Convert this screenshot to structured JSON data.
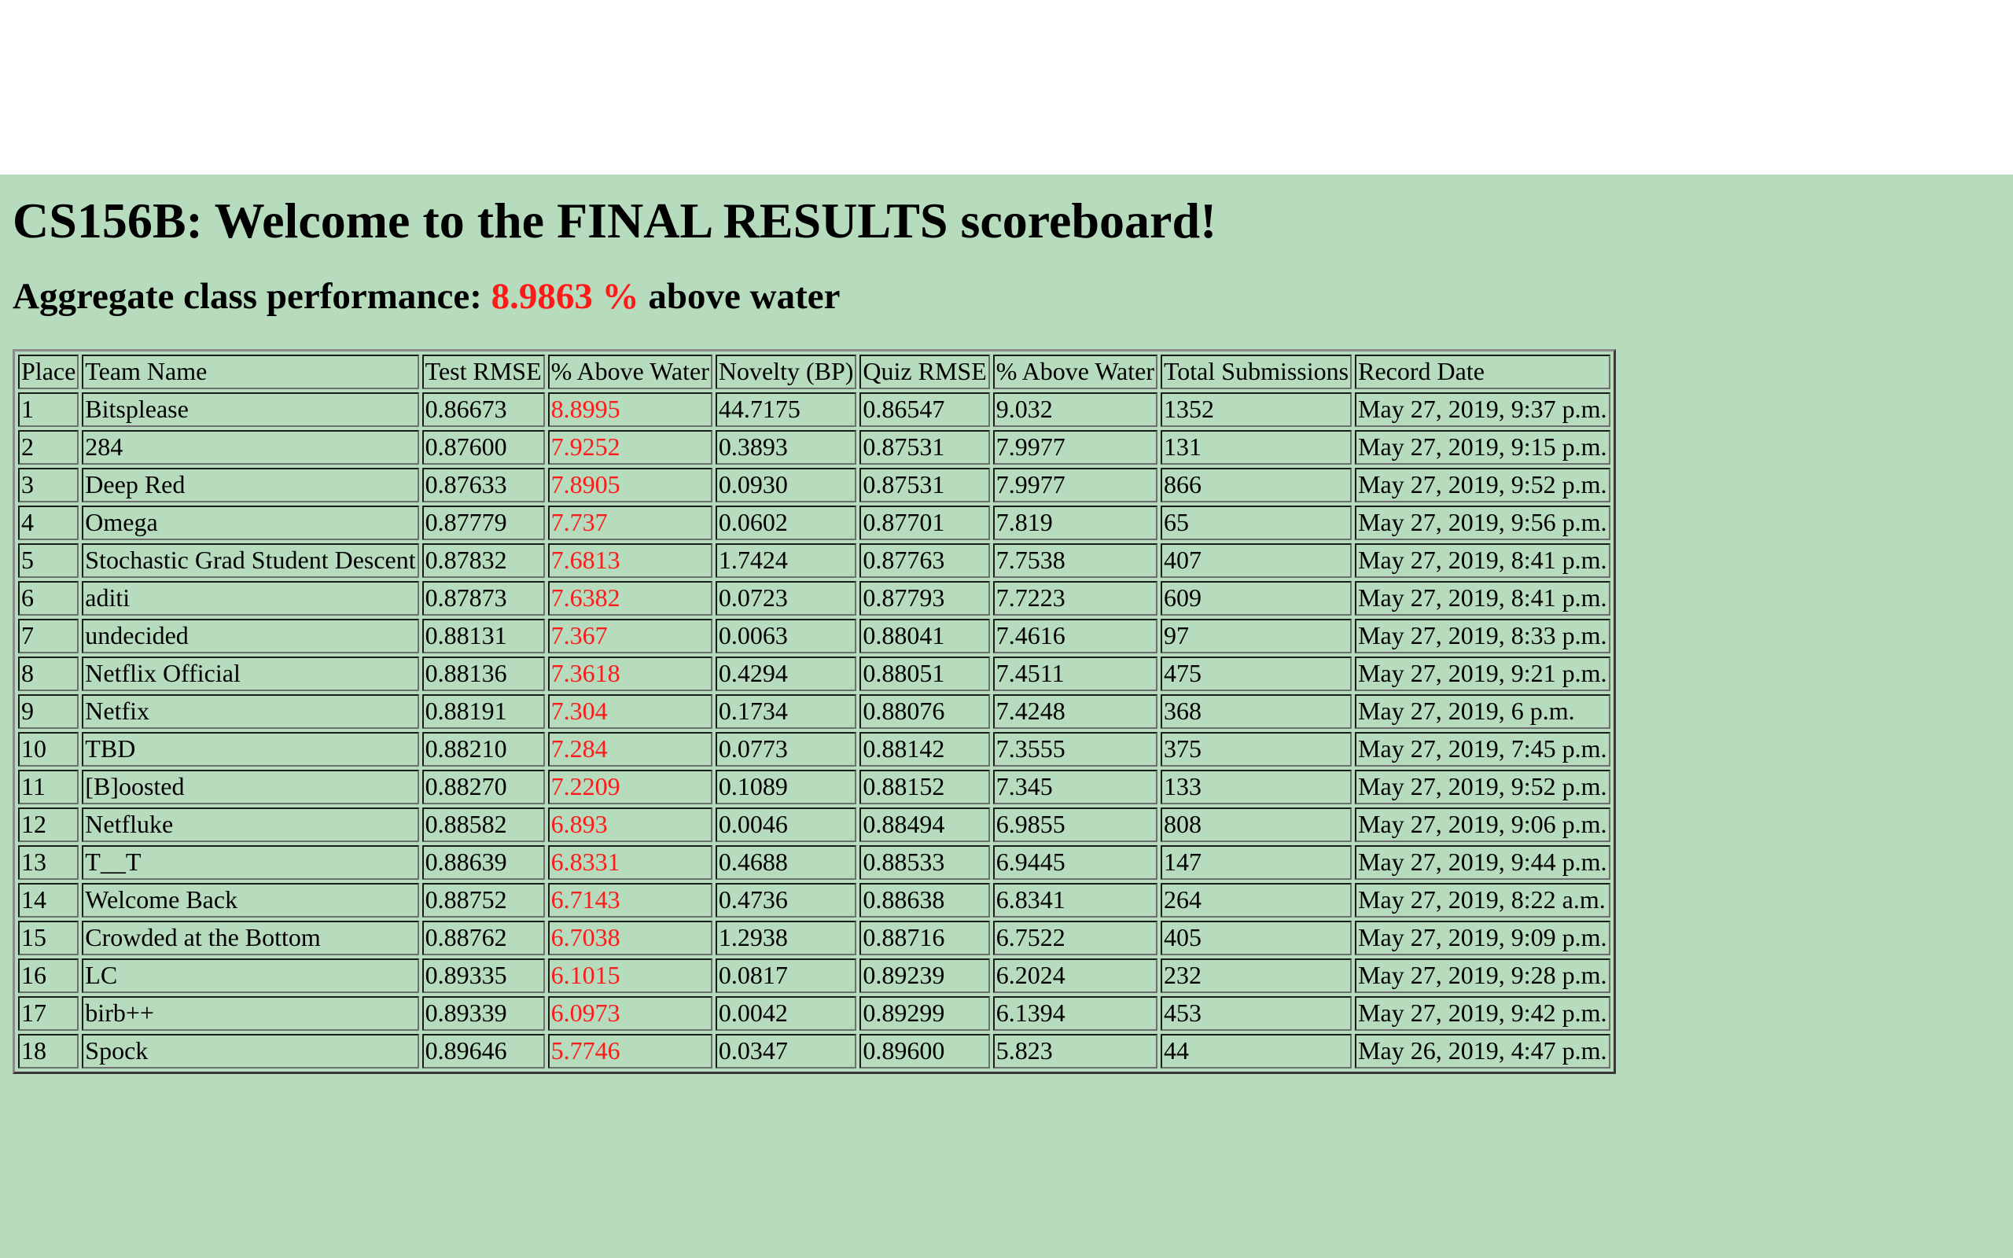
{
  "header": {
    "title": "CS156B: Welcome to the FINAL RESULTS scoreboard!",
    "aggregate_prefix": "Aggregate class performance: ",
    "aggregate_value": "8.9863 %",
    "aggregate_suffix": " above water"
  },
  "colors": {
    "background": "#b6dcbd",
    "highlight": "#ff1a1a"
  },
  "table": {
    "columns": [
      "Place",
      "Team Name",
      "Test RMSE",
      "% Above Water",
      "Novelty (BP)",
      "Quiz RMSE",
      "% Above Water",
      "Total Submissions",
      "Record Date"
    ],
    "rows": [
      [
        "1",
        "Bitsplease",
        "0.86673",
        "8.8995",
        "44.7175",
        "0.86547",
        "9.032",
        "1352",
        "May 27, 2019, 9:37 p.m."
      ],
      [
        "2",
        "284",
        "0.87600",
        "7.9252",
        "0.3893",
        "0.87531",
        "7.9977",
        "131",
        "May 27, 2019, 9:15 p.m."
      ],
      [
        "3",
        "Deep Red",
        "0.87633",
        "7.8905",
        "0.0930",
        "0.87531",
        "7.9977",
        "866",
        "May 27, 2019, 9:52 p.m."
      ],
      [
        "4",
        "Omega",
        "0.87779",
        "7.737",
        "0.0602",
        "0.87701",
        "7.819",
        "65",
        "May 27, 2019, 9:56 p.m."
      ],
      [
        "5",
        "Stochastic Grad Student Descent",
        "0.87832",
        "7.6813",
        "1.7424",
        "0.87763",
        "7.7538",
        "407",
        "May 27, 2019, 8:41 p.m."
      ],
      [
        "6",
        "aditi",
        "0.87873",
        "7.6382",
        "0.0723",
        "0.87793",
        "7.7223",
        "609",
        "May 27, 2019, 8:41 p.m."
      ],
      [
        "7",
        "undecided",
        "0.88131",
        "7.367",
        "0.0063",
        "0.88041",
        "7.4616",
        "97",
        "May 27, 2019, 8:33 p.m."
      ],
      [
        "8",
        "Netflix Official",
        "0.88136",
        "7.3618",
        "0.4294",
        "0.88051",
        "7.4511",
        "475",
        "May 27, 2019, 9:21 p.m."
      ],
      [
        "9",
        "Netfix",
        "0.88191",
        "7.304",
        "0.1734",
        "0.88076",
        "7.4248",
        "368",
        "May 27, 2019, 6 p.m."
      ],
      [
        "10",
        "TBD",
        "0.88210",
        "7.284",
        "0.0773",
        "0.88142",
        "7.3555",
        "375",
        "May 27, 2019, 7:45 p.m."
      ],
      [
        "11",
        "[B]oosted",
        "0.88270",
        "7.2209",
        "0.1089",
        "0.88152",
        "7.345",
        "133",
        "May 27, 2019, 9:52 p.m."
      ],
      [
        "12",
        "Netfluke",
        "0.88582",
        "6.893",
        "0.0046",
        "0.88494",
        "6.9855",
        "808",
        "May 27, 2019, 9:06 p.m."
      ],
      [
        "13",
        "T__T",
        "0.88639",
        "6.8331",
        "0.4688",
        "0.88533",
        "6.9445",
        "147",
        "May 27, 2019, 9:44 p.m."
      ],
      [
        "14",
        "Welcome Back",
        "0.88752",
        "6.7143",
        "0.4736",
        "0.88638",
        "6.8341",
        "264",
        "May 27, 2019, 8:22 a.m."
      ],
      [
        "15",
        "Crowded at the Bottom",
        "0.88762",
        "6.7038",
        "1.2938",
        "0.88716",
        "6.7522",
        "405",
        "May 27, 2019, 9:09 p.m."
      ],
      [
        "16",
        "LC",
        "0.89335",
        "6.1015",
        "0.0817",
        "0.89239",
        "6.2024",
        "232",
        "May 27, 2019, 9:28 p.m."
      ],
      [
        "17",
        "birb++",
        "0.89339",
        "6.0973",
        "0.0042",
        "0.89299",
        "6.1394",
        "453",
        "May 27, 2019, 9:42 p.m."
      ],
      [
        "18",
        "Spock",
        "0.89646",
        "5.7746",
        "0.0347",
        "0.89600",
        "5.823",
        "44",
        "May 26, 2019, 4:47 p.m."
      ]
    ]
  }
}
